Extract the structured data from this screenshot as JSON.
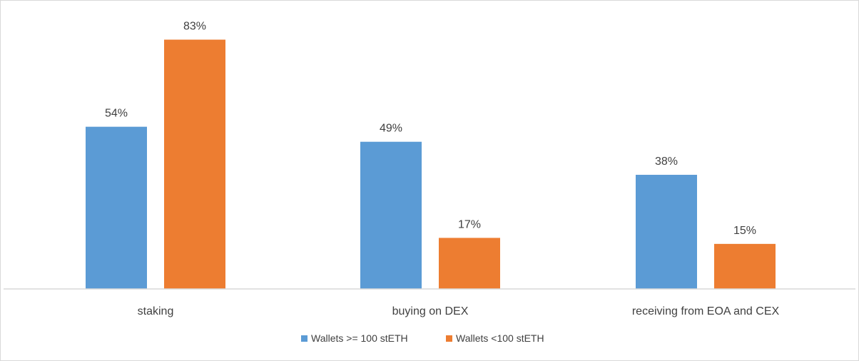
{
  "chart_data": {
    "type": "bar",
    "title": "",
    "xlabel": "",
    "ylabel": "",
    "categories": [
      "staking",
      "buying on DEX",
      "receiving from EOA and CEX"
    ],
    "series": [
      {
        "name": "Wallets >= 100 stETH",
        "color": "#5b9bd5",
        "values": [
          54,
          49,
          38
        ],
        "labels": [
          "54%",
          "49%",
          "38%"
        ]
      },
      {
        "name": "Wallets <100 stETH",
        "color": "#ed7d31",
        "values": [
          83,
          17,
          15
        ],
        "labels": [
          "83%",
          "17%",
          "15%"
        ]
      }
    ],
    "ylim": [
      0,
      90
    ],
    "value_unit": "%",
    "grid": false,
    "y_axis_visible": false,
    "legend_position": "bottom"
  }
}
